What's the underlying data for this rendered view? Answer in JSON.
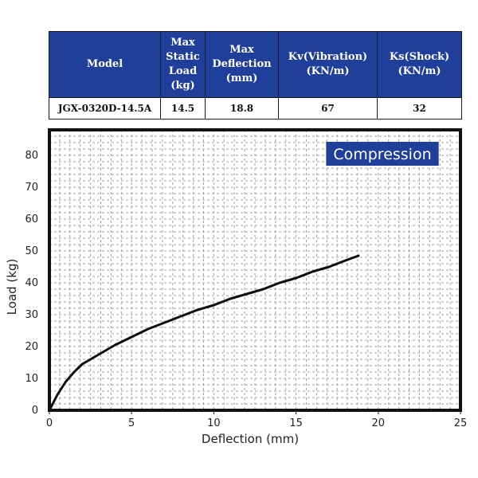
{
  "spec_table": {
    "headers": [
      "Model",
      "Max\nStatic\nLoad\n(kg)",
      "Max\nDeflection\n(mm)",
      "Kv(Vibration)\n(KN/m)",
      "Ks(Shock)\n(KN/m)"
    ],
    "row": [
      "JGX-0320D-14.5A",
      "14.5",
      "18.8",
      "67",
      "32"
    ]
  },
  "chart_data": {
    "type": "line",
    "title": "Compression",
    "xlabel": "Deflection (mm)",
    "ylabel": "Load (kg)",
    "xlim": [
      0,
      25
    ],
    "ylim": [
      0,
      88
    ],
    "x_ticks": [
      0,
      5,
      10,
      15,
      20,
      25
    ],
    "y_ticks": [
      0,
      10,
      20,
      30,
      40,
      50,
      60,
      70,
      80
    ],
    "grid": true,
    "series": [
      {
        "color": "#111111",
        "x": [
          0,
          0.5,
          1,
          1.5,
          2,
          3,
          4,
          5,
          6,
          7,
          8,
          9,
          10,
          11,
          12,
          13,
          14,
          15,
          16,
          17,
          18,
          18.8
        ],
        "y": [
          0,
          5,
          9,
          12,
          14.5,
          17.5,
          20.5,
          23,
          25.5,
          27.5,
          29.5,
          31.5,
          33,
          35,
          36.5,
          38,
          40,
          41.5,
          43.5,
          45,
          47,
          48.5
        ]
      }
    ]
  },
  "colors": {
    "header_bg": "#1f3f9a",
    "badge_bg": "#1f3f9a",
    "frame": "#111111",
    "grid": "#a0a0a0"
  }
}
